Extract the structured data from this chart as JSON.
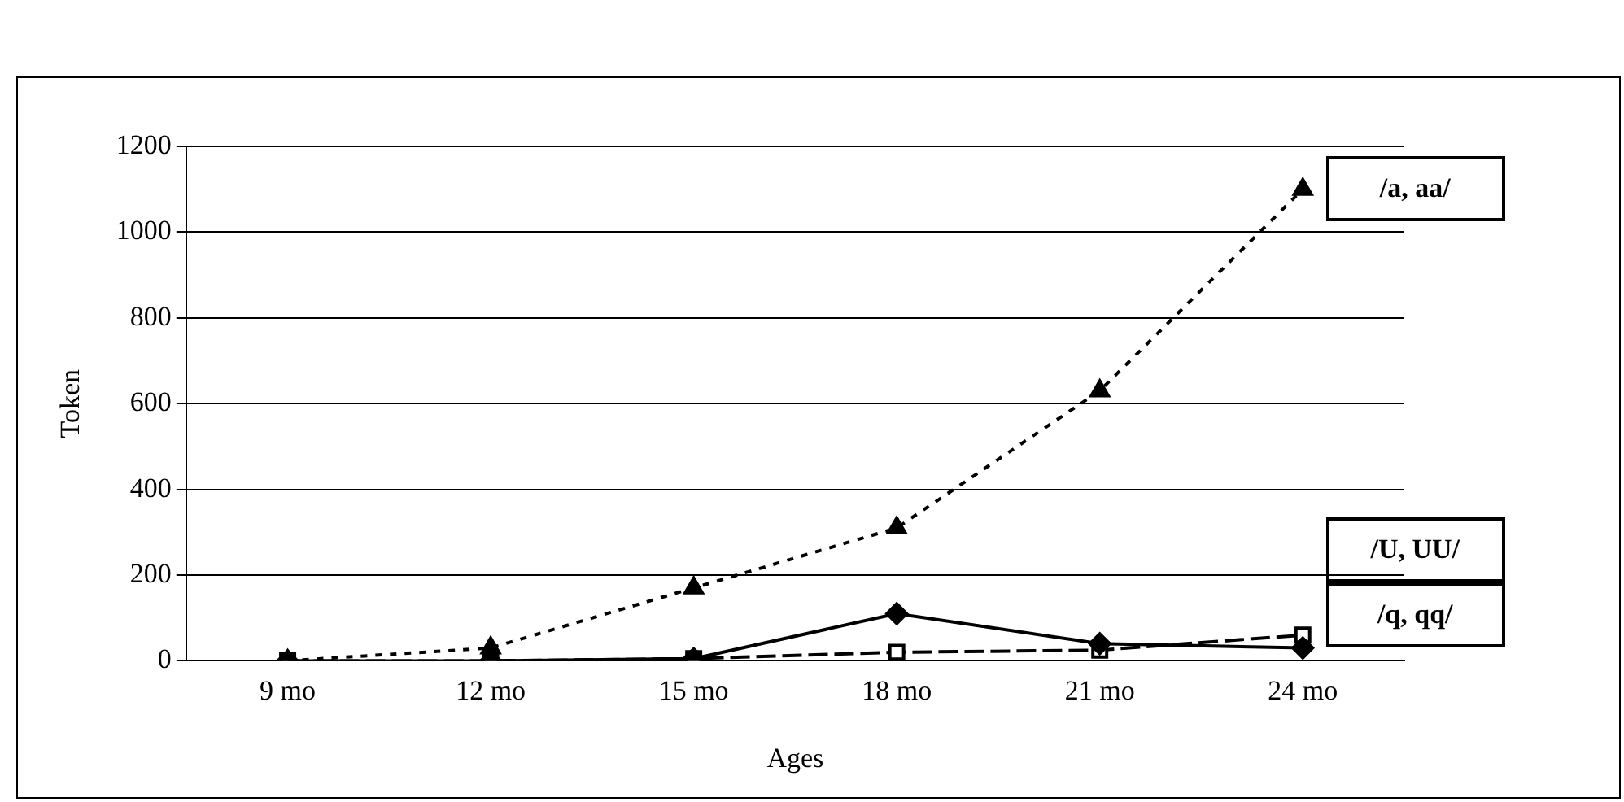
{
  "chart_data": {
    "type": "line",
    "xlabel": "Ages",
    "ylabel": "Token",
    "categories": [
      "9 mo",
      "12 mo",
      "15 mo",
      "18 mo",
      "21 mo",
      "24 mo"
    ],
    "series": [
      {
        "name": "/a, aa/",
        "color": "#000000",
        "marker": "triangle",
        "line_style": "dotted",
        "values": [
          0,
          30,
          170,
          310,
          630,
          1100
        ]
      },
      {
        "name": "/q, qq/",
        "color": "#000000",
        "marker": "diamond",
        "line_style": "solid",
        "values": [
          0,
          0,
          5,
          110,
          40,
          30
        ]
      },
      {
        "name": "/U, UU/",
        "color": "#000000",
        "marker": "square",
        "line_style": "dashed",
        "values": [
          0,
          0,
          5,
          20,
          25,
          60
        ]
      }
    ],
    "ylim": [
      0,
      1200
    ],
    "yticks": [
      0,
      200,
      400,
      600,
      800,
      1000,
      1200
    ],
    "grid": "y",
    "legend": false
  }
}
